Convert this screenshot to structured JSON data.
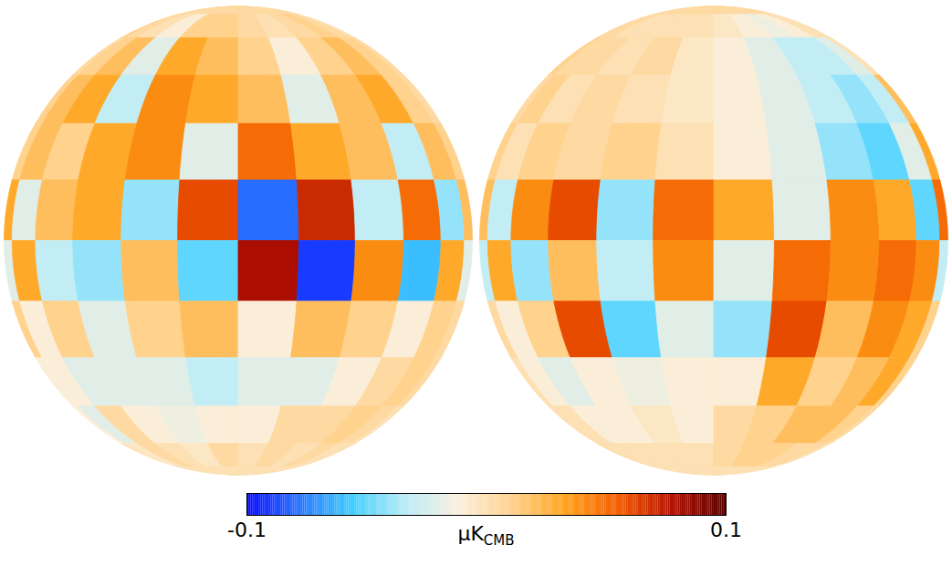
{
  "chart_data": {
    "type": "heatmap",
    "panels": [
      {
        "center_lon": 0,
        "lat_edges": [
          90,
          75,
          60,
          45,
          30,
          15,
          0,
          -15,
          -30,
          -45,
          -60,
          -75,
          -90
        ],
        "lon_edges": [
          -90,
          -75,
          -60,
          -45,
          -30,
          -15,
          0,
          15,
          30,
          45,
          60,
          75,
          90
        ],
        "cells": [
          [
            0.005,
            0.005,
            0.005,
            0.005,
            0.005,
            0.005,
            0.005,
            0.005,
            0.005,
            0.005,
            0.005,
            0.005
          ],
          [
            0.01,
            0.005,
            0,
            -0.01,
            0.01,
            0.01,
            0.005,
            0,
            0.005,
            0.01,
            0.005,
            0
          ],
          [
            0.005,
            0.01,
            0.02,
            -0.02,
            0.03,
            0.02,
            0.01,
            -0.01,
            0.01,
            0.02,
            0.01,
            0.005
          ],
          [
            0.01,
            0.02,
            0.03,
            -0.03,
            0.04,
            0.03,
            0.02,
            -0.02,
            0.02,
            0.03,
            0.01,
            0.005
          ],
          [
            0.01,
            0.02,
            0.01,
            0.03,
            0.04,
            -0.02,
            0.05,
            0.03,
            0.02,
            -0.03,
            0.02,
            0.01
          ],
          [
            0.03,
            -0.02,
            0.02,
            0.03,
            -0.04,
            0.06,
            -0.08,
            0.07,
            -0.03,
            0.05,
            -0.04,
            0.02
          ],
          [
            -0.02,
            0.03,
            -0.03,
            -0.04,
            0.02,
            -0.05,
            0.08,
            -0.09,
            0.04,
            -0.06,
            0.03,
            -0.02
          ],
          [
            0.01,
            -0.01,
            0.01,
            -0.02,
            0.01,
            0.02,
            -0.01,
            0.02,
            0.01,
            -0.01,
            0.01,
            0.005
          ],
          [
            -0.01,
            -0.01,
            -0.02,
            -0.02,
            -0.02,
            -0.03,
            -0.02,
            -0.02,
            -0.01,
            0.005,
            0.01,
            0.005
          ],
          [
            -0.01,
            -0.02,
            0.005,
            -0.01,
            -0.015,
            -0.01,
            -0.01,
            0.005,
            0.005,
            0.01,
            0.005,
            0
          ],
          [
            0,
            -0.005,
            0.005,
            0,
            -0.005,
            0.005,
            0,
            0.005,
            0,
            0.005,
            0,
            0
          ],
          [
            0,
            0,
            0,
            0,
            0,
            0,
            0,
            0,
            0,
            0,
            0,
            0
          ]
        ]
      },
      {
        "center_lon": 180,
        "lat_edges": [
          90,
          75,
          60,
          45,
          30,
          15,
          0,
          -15,
          -30,
          -45,
          -60,
          -75,
          -90
        ],
        "lon_edges": [
          -90,
          -75,
          -60,
          -45,
          -30,
          -15,
          0,
          15,
          30,
          45,
          60,
          75,
          90
        ],
        "cells": [
          [
            0.005,
            0.005,
            0.005,
            0.005,
            0.005,
            0.005,
            0.005,
            0.005,
            0.005,
            0.005,
            0.005,
            0.005
          ],
          [
            0.005,
            0.005,
            0,
            0,
            0,
            0,
            -0.005,
            -0.01,
            -0.015,
            -0.01,
            0,
            0
          ],
          [
            0.01,
            0.005,
            0.005,
            0,
            0.005,
            -0.005,
            -0.01,
            -0.02,
            -0.03,
            -0.03,
            -0.02,
            0
          ],
          [
            0.005,
            0.01,
            0,
            0.005,
            0,
            -0.005,
            -0.01,
            -0.02,
            -0.03,
            -0.04,
            -0.03,
            0.02
          ],
          [
            0.01,
            0,
            0.01,
            0.005,
            0.01,
            0,
            -0.01,
            -0.02,
            -0.04,
            -0.05,
            -0.02,
            0.03
          ],
          [
            0.02,
            -0.03,
            0.04,
            0.06,
            -0.04,
            0.05,
            0.03,
            -0.02,
            0.04,
            0.03,
            -0.05,
            0.05
          ],
          [
            -0.03,
            0.03,
            -0.04,
            0.02,
            -0.03,
            0.04,
            -0.02,
            0.05,
            0.04,
            0.05,
            0.04,
            -0.03
          ],
          [
            0.005,
            -0.01,
            0.01,
            0.06,
            -0.05,
            -0.02,
            -0.04,
            0.06,
            0.02,
            0.04,
            0.03,
            0.01
          ],
          [
            0,
            -0.01,
            -0.02,
            -0.01,
            -0.015,
            -0.01,
            -0.01,
            0.03,
            0.01,
            0.02,
            0.03,
            0.01
          ],
          [
            0,
            0,
            -0.01,
            -0.01,
            -0.005,
            -0.01,
            0.005,
            0.01,
            0.02,
            0.02,
            0.01,
            0.005
          ],
          [
            0.005,
            0,
            0,
            0,
            0,
            0,
            0.005,
            0.01,
            0.01,
            0.005,
            0.005,
            0
          ],
          [
            0,
            0,
            0,
            0,
            0,
            0,
            0,
            0,
            0,
            0,
            0,
            0
          ]
        ]
      }
    ],
    "colorbar": {
      "range": [
        -0.1,
        0.1
      ],
      "ticks": [
        -0.1,
        0.1
      ],
      "label": "μK",
      "label_sub": "CMB"
    }
  }
}
